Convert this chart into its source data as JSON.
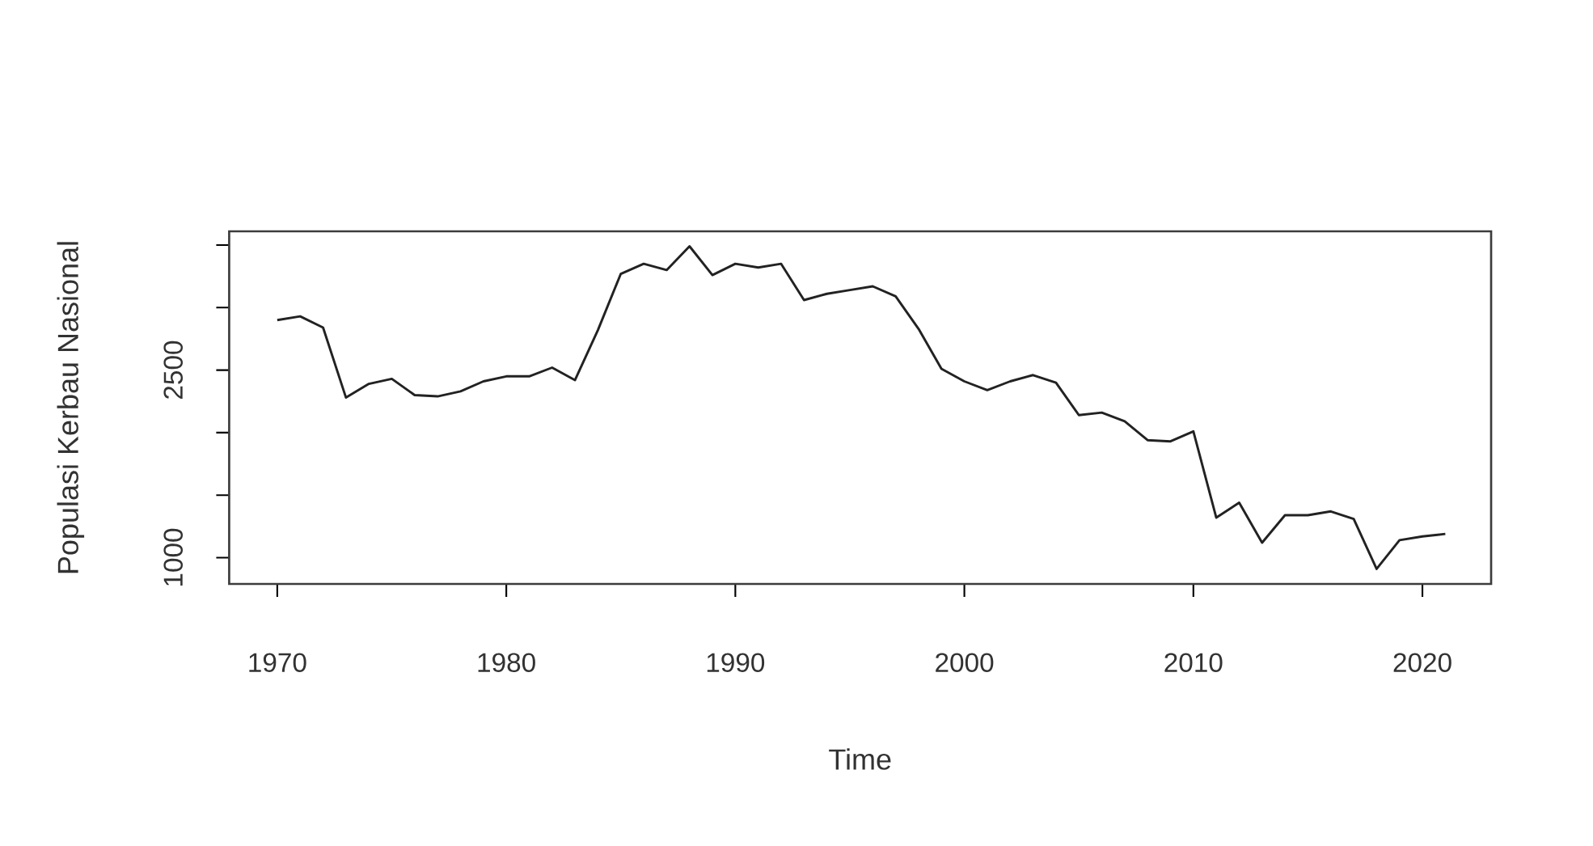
{
  "chart_data": {
    "type": "line",
    "xlabel": "Time",
    "ylabel": "Populasi Kerbau Nasional",
    "x": [
      1970,
      1971,
      1972,
      1973,
      1974,
      1975,
      1976,
      1977,
      1978,
      1979,
      1980,
      1981,
      1982,
      1983,
      1984,
      1985,
      1986,
      1987,
      1988,
      1989,
      1990,
      1991,
      1992,
      1993,
      1994,
      1995,
      1996,
      1997,
      1998,
      1999,
      2000,
      2001,
      2002,
      2003,
      2004,
      2005,
      2006,
      2007,
      2008,
      2009,
      2010,
      2011,
      2012,
      2013,
      2014,
      2015,
      2016,
      2017,
      2018,
      2019,
      2020,
      2021
    ],
    "series": [
      {
        "color": "#222222",
        "values": [
          2900,
          2930,
          2840,
          2280,
          2390,
          2430,
          2300,
          2290,
          2330,
          2410,
          2450,
          2450,
          2520,
          2420,
          2820,
          3270,
          3350,
          3300,
          3490,
          3260,
          3350,
          3320,
          3350,
          3060,
          3110,
          3140,
          3170,
          3090,
          2830,
          2510,
          2410,
          2340,
          2410,
          2460,
          2400,
          2140,
          2160,
          2090,
          1940,
          1930,
          2010,
          1320,
          1440,
          1120,
          1340,
          1340,
          1370,
          1310,
          910,
          1140,
          1170,
          1190
        ]
      }
    ],
    "xlim": [
      1967.9,
      2023.0
    ],
    "ylim": [
      790,
      3610
    ],
    "xticks": [
      1970,
      1980,
      1990,
      2000,
      2010,
      2020
    ],
    "yticks": [
      1000,
      {
        "value": 1500,
        "label": null
      },
      {
        "value": 2000,
        "label": null
      },
      2500,
      {
        "value": 3000,
        "label": null
      },
      {
        "value": 3500,
        "label": null
      }
    ],
    "grid": false,
    "line_style": "solid",
    "marker": "none"
  }
}
